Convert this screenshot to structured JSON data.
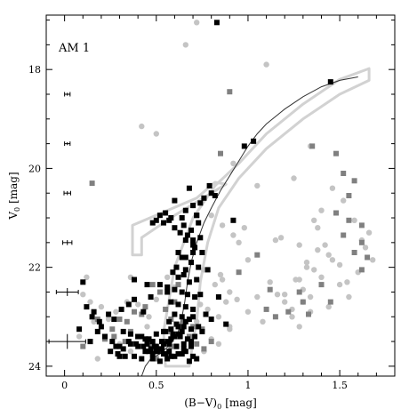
{
  "chart_data": {
    "type": "scatter",
    "title": "AM 1",
    "xlabel_main": "(B−V)",
    "xlabel_sub": "0",
    "xlabel_unit": "[mag]",
    "ylabel_main": "V",
    "ylabel_sub": "0",
    "ylabel_unit": "[mag]",
    "xlim": [
      -0.1,
      1.8
    ],
    "ylim": [
      24.2,
      16.9
    ],
    "y_inverted": true,
    "grid": false,
    "x_ticks": [
      0,
      0.5,
      1,
      1.5
    ],
    "x_tick_labels": [
      "0",
      "0.5",
      "1",
      "1.5"
    ],
    "y_ticks": [
      18,
      20,
      22,
      24
    ],
    "y_tick_labels": [
      "18",
      "20",
      "22",
      "24"
    ],
    "colors": {
      "black_squares": "#000000",
      "gray_squares": "#808080",
      "light_circles": "#c4c4c4",
      "boxes": "#d2d2d2",
      "isochrone": "#333333"
    },
    "error_bars": [
      {
        "x": 0.015,
        "y": 18.5,
        "xerr": 0.015,
        "yerr": 0.03
      },
      {
        "x": 0.015,
        "y": 19.5,
        "xerr": 0.015,
        "yerr": 0.03
      },
      {
        "x": 0.015,
        "y": 20.5,
        "xerr": 0.018,
        "yerr": 0.04
      },
      {
        "x": 0.015,
        "y": 21.5,
        "xerr": 0.025,
        "yerr": 0.05
      },
      {
        "x": 0.015,
        "y": 22.5,
        "xerr": 0.06,
        "yerr": 0.08
      },
      {
        "x": 0.015,
        "y": 23.5,
        "xerr": 0.1,
        "yerr": 0.15
      }
    ],
    "isochrone": {
      "x": [
        0.42,
        0.44,
        0.47,
        0.52,
        0.58,
        0.62,
        0.64,
        0.655,
        0.67,
        0.69,
        0.72,
        0.76,
        0.8,
        0.85,
        0.9,
        0.95,
        1.0,
        1.05,
        1.1,
        1.2,
        1.3,
        1.4,
        1.5,
        1.6
      ],
      "y": [
        24.2,
        24.0,
        23.85,
        23.75,
        23.55,
        23.3,
        23.0,
        22.7,
        22.3,
        21.9,
        21.5,
        21.1,
        20.8,
        20.45,
        20.15,
        19.85,
        19.55,
        19.3,
        19.1,
        18.8,
        18.55,
        18.35,
        18.22,
        18.15
      ]
    },
    "box_hb": [
      [
        0.37,
        21.75
      ],
      [
        0.37,
        21.15
      ],
      [
        0.72,
        20.6
      ],
      [
        0.82,
        20.28
      ],
      [
        0.88,
        20.32
      ],
      [
        0.6,
        20.95
      ],
      [
        0.42,
        21.4
      ],
      [
        0.42,
        21.75
      ]
    ],
    "box_rgb": [
      [
        0.55,
        24.0
      ],
      [
        0.54,
        23.3
      ],
      [
        0.6,
        22.0
      ],
      [
        0.7,
        21.0
      ],
      [
        0.82,
        20.35
      ],
      [
        0.95,
        19.9
      ],
      [
        1.1,
        19.3
      ],
      [
        1.3,
        18.7
      ],
      [
        1.5,
        18.2
      ],
      [
        1.66,
        17.98
      ],
      [
        1.66,
        18.22
      ],
      [
        1.5,
        18.5
      ],
      [
        1.3,
        19.0
      ],
      [
        1.1,
        19.6
      ],
      [
        0.95,
        20.2
      ],
      [
        0.84,
        20.8
      ],
      [
        0.78,
        21.5
      ],
      [
        0.74,
        22.3
      ],
      [
        0.72,
        23.1
      ],
      [
        0.7,
        23.5
      ],
      [
        0.68,
        24.0
      ]
    ],
    "series": [
      {
        "marker": "square",
        "color": "black",
        "x": [
          0.83,
          1.45,
          1.03,
          0.98,
          0.6,
          0.68,
          0.66,
          0.7,
          0.64,
          0.72,
          0.76,
          0.8,
          0.65,
          0.69,
          0.73,
          0.67,
          0.7,
          0.74,
          0.71,
          0.75,
          0.62,
          0.66,
          0.69,
          0.73,
          0.55,
          0.58,
          0.52,
          0.5,
          0.54,
          0.48,
          0.57,
          0.6,
          0.63,
          0.66,
          0.7,
          0.59,
          0.62,
          0.65,
          0.68,
          0.72,
          0.56,
          0.6,
          0.64,
          0.67,
          0.71,
          0.74,
          0.58,
          0.62,
          0.66,
          0.7,
          0.6,
          0.64,
          0.68,
          0.57,
          0.61,
          0.65,
          0.69,
          0.73,
          0.55,
          0.59,
          0.63,
          0.67,
          0.71,
          0.53,
          0.57,
          0.61,
          0.65,
          0.69,
          0.5,
          0.54,
          0.58,
          0.62,
          0.66,
          0.7,
          0.48,
          0.52,
          0.56,
          0.6,
          0.64,
          0.68,
          0.72,
          0.45,
          0.49,
          0.53,
          0.57,
          0.61,
          0.65,
          0.69,
          0.42,
          0.46,
          0.5,
          0.54,
          0.58,
          0.62,
          0.66,
          0.7,
          0.4,
          0.44,
          0.48,
          0.52,
          0.56,
          0.6,
          0.64,
          0.38,
          0.42,
          0.46,
          0.5,
          0.54,
          0.58,
          0.62,
          0.35,
          0.39,
          0.43,
          0.47,
          0.51,
          0.55,
          0.32,
          0.36,
          0.4,
          0.44,
          0.48,
          0.28,
          0.32,
          0.36,
          0.4,
          0.25,
          0.29,
          0.33,
          0.22,
          0.26,
          0.3,
          0.18,
          0.22,
          0.15,
          0.19,
          0.12,
          0.1,
          0.14,
          0.2,
          0.24,
          0.27,
          0.31,
          0.35,
          0.38,
          0.43,
          0.47,
          0.78,
          0.84,
          0.88,
          0.92,
          0.52,
          0.56,
          0.61,
          0.64,
          0.66,
          0.7,
          0.72,
          0.74,
          0.79,
          0.82,
          0.75,
          0.77,
          0.8,
          0.45,
          0.38,
          0.3,
          0.16,
          0.08
        ],
        "y": [
          17.05,
          18.25,
          19.45,
          19.55,
          20.65,
          20.4,
          20.85,
          20.75,
          21.0,
          20.95,
          20.6,
          20.5,
          21.15,
          21.25,
          21.1,
          21.35,
          21.45,
          21.4,
          21.6,
          21.7,
          21.7,
          21.8,
          21.9,
          22.0,
          20.9,
          21.0,
          20.95,
          21.05,
          21.1,
          21.1,
          21.05,
          21.2,
          21.3,
          21.45,
          21.55,
          22.1,
          22.2,
          22.15,
          22.3,
          22.25,
          22.4,
          22.45,
          22.5,
          22.55,
          22.6,
          22.55,
          22.7,
          22.75,
          22.8,
          22.85,
          22.95,
          23.0,
          23.05,
          23.1,
          23.15,
          23.2,
          23.25,
          23.2,
          23.3,
          23.35,
          23.4,
          23.45,
          23.4,
          23.5,
          23.55,
          23.6,
          23.65,
          23.6,
          23.7,
          23.75,
          23.8,
          23.75,
          23.7,
          23.8,
          23.85,
          23.9,
          23.85,
          23.8,
          23.75,
          23.9,
          23.85,
          23.55,
          23.6,
          23.65,
          23.7,
          23.6,
          23.55,
          23.5,
          23.4,
          23.45,
          23.35,
          23.3,
          23.25,
          23.2,
          23.1,
          23.0,
          23.6,
          23.7,
          23.75,
          23.65,
          23.5,
          23.4,
          23.3,
          23.8,
          23.85,
          23.7,
          23.6,
          23.55,
          23.45,
          23.35,
          23.5,
          23.55,
          23.6,
          23.65,
          23.7,
          23.75,
          23.3,
          23.35,
          23.4,
          23.45,
          23.5,
          23.6,
          23.65,
          23.55,
          23.4,
          23.7,
          23.75,
          23.8,
          23.4,
          23.5,
          23.6,
          23.3,
          23.4,
          23.0,
          23.1,
          22.8,
          22.3,
          23.5,
          23.2,
          22.95,
          23.05,
          22.85,
          22.75,
          22.65,
          22.9,
          22.6,
          22.05,
          22.6,
          23.15,
          21.05,
          22.35,
          22.5,
          22.0,
          21.8,
          22.05,
          21.7,
          20.95,
          20.7,
          20.35,
          20.55,
          23.3,
          22.95,
          23.05,
          22.35,
          22.25,
          23.8,
          22.9,
          23.25
        ]
      },
      {
        "marker": "square",
        "color": "gray",
        "x": [
          0.15,
          0.85,
          1.35,
          1.48,
          1.52,
          1.55,
          1.48,
          1.55,
          1.58,
          1.62,
          1.62,
          1.65,
          1.52,
          1.58,
          1.62,
          1.4,
          1.45,
          1.3,
          1.22,
          1.12,
          1.1,
          1.15,
          0.95,
          1.05,
          1.33,
          1.28,
          0.9,
          0.62,
          0.55,
          0.58,
          0.52,
          0.48,
          0.6,
          0.65,
          0.7,
          0.75,
          0.56,
          0.44,
          0.42,
          0.34,
          0.3,
          0.27,
          0.26,
          0.38,
          0.33,
          0.68,
          0.72,
          0.76,
          0.8,
          0.64,
          0.58,
          0.5,
          0.46,
          0.36,
          0.22,
          0.18,
          0.1
        ],
        "y": [
          20.3,
          19.7,
          19.55,
          19.7,
          20.1,
          20.55,
          20.9,
          21.05,
          20.25,
          21.15,
          21.5,
          21.8,
          21.35,
          21.7,
          22.05,
          22.35,
          22.7,
          22.7,
          22.9,
          22.45,
          22.85,
          23.0,
          22.1,
          21.75,
          22.95,
          22.5,
          18.45,
          22.35,
          22.85,
          23.05,
          22.5,
          22.35,
          22.7,
          23.1,
          23.2,
          23.25,
          23.3,
          22.8,
          22.95,
          23.1,
          23.05,
          23.4,
          23.25,
          22.9,
          23.5,
          23.4,
          23.55,
          23.65,
          23.5,
          23.75,
          23.6,
          23.85,
          23.55,
          23.3,
          23.45,
          23.05,
          23.6
        ]
      },
      {
        "marker": "circle",
        "color": "lightgray",
        "x": [
          0.66,
          0.72,
          1.1,
          0.42,
          0.5,
          0.7,
          0.92,
          1.05,
          0.98,
          1.15,
          1.25,
          1.34,
          1.18,
          1.28,
          1.38,
          1.46,
          1.52,
          1.58,
          1.66,
          1.32,
          1.36,
          1.4,
          1.44,
          1.5,
          1.54,
          1.6,
          1.64,
          1.68,
          1.26,
          1.3,
          1.34,
          1.38,
          1.42,
          1.46,
          1.5,
          1.2,
          1.24,
          1.28,
          1.32,
          1.36,
          1.4,
          1.12,
          1.16,
          1.2,
          1.24,
          1.28,
          1.3,
          1.34,
          1.44,
          1.55,
          1.62,
          1.0,
          0.92,
          0.86,
          0.8,
          0.95,
          1.05,
          1.08,
          0.85,
          0.9,
          0.76,
          0.82,
          0.88,
          0.78,
          0.84,
          0.9,
          0.94,
          1.0,
          0.86,
          0.9,
          0.72,
          0.74,
          0.8,
          0.76,
          0.84,
          0.5,
          0.6,
          0.56,
          0.4,
          0.46,
          0.34,
          0.28,
          0.24,
          0.2,
          0.12,
          0.1,
          0.14,
          0.16,
          0.08,
          0.3,
          0.36,
          0.45,
          0.36,
          0.18
        ],
        "y": [
          17.5,
          17.05,
          17.9,
          19.15,
          19.3,
          20.75,
          19.9,
          20.35,
          21.2,
          21.45,
          20.2,
          19.55,
          21.4,
          21.55,
          21.65,
          20.4,
          20.65,
          21.05,
          21.3,
          21.9,
          22.05,
          22.2,
          21.75,
          21.95,
          22.3,
          22.1,
          21.6,
          21.85,
          22.25,
          22.45,
          22.6,
          21.2,
          21.55,
          21.85,
          22.35,
          22.55,
          22.85,
          22.25,
          22.0,
          21.05,
          20.85,
          22.3,
          22.55,
          22.7,
          23.0,
          23.2,
          22.7,
          22.9,
          22.8,
          22.6,
          21.45,
          21.85,
          21.35,
          21.15,
          20.95,
          21.5,
          22.6,
          23.1,
          22.15,
          22.5,
          22.05,
          22.35,
          22.7,
          22.85,
          23.0,
          23.2,
          22.65,
          22.9,
          22.25,
          23.25,
          23.1,
          22.75,
          23.45,
          23.7,
          23.55,
          22.65,
          22.4,
          22.2,
          22.75,
          23.0,
          22.7,
          22.9,
          23.05,
          22.8,
          22.2,
          22.55,
          22.7,
          23.1,
          23.4,
          23.55,
          23.7,
          23.2,
          22.2,
          23.85
        ]
      }
    ]
  }
}
